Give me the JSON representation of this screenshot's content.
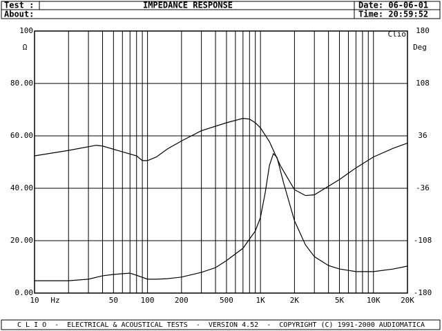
{
  "header": {
    "test_label": "Test :",
    "about_label": "About:",
    "title": "IMPEDANCE RESPONSE",
    "date": "Date: 06-06-01",
    "time": "Time: 20:59:52"
  },
  "footer": "C L I O  -  ELECTRICAL & ACOUSTICAL TESTS  -  VERSION 4.52  -  COPYRIGHT (C) 1991-2000 AUDIOMATICA",
  "chart_data": {
    "type": "line",
    "xlabel": "Hz",
    "ylabel": "Ω",
    "y2label": "Deg",
    "corner_label": "Clio",
    "xscale": "log",
    "grid": true,
    "xlim": [
      10,
      20000
    ],
    "xticks": [
      10,
      50,
      100,
      200,
      500,
      {
        "value": 1000,
        "label": "1K"
      },
      {
        "value": 2000,
        "label": "2K"
      },
      {
        "value": 5000,
        "label": "5K"
      },
      {
        "value": 10000,
        "label": "10K"
      },
      {
        "value": 20000,
        "label": "20K"
      }
    ],
    "xminor": [
      20,
      30,
      40,
      60,
      70,
      80,
      90,
      300,
      400,
      600,
      700,
      800,
      900,
      3000,
      4000,
      6000,
      7000,
      8000,
      9000
    ],
    "ylim": [
      0,
      100
    ],
    "yticks": [
      {
        "value": 0,
        "label": "0.00"
      },
      {
        "value": 20,
        "label": "20.00"
      },
      {
        "value": 40,
        "label": "40.00"
      },
      {
        "value": 60,
        "label": "60.00"
      },
      {
        "value": 80,
        "label": "80.00"
      },
      100
    ],
    "y2lim": [
      -180,
      180
    ],
    "y2ticks": [
      -180,
      -108,
      -36,
      36,
      108,
      180
    ],
    "series": [
      {
        "name": "Impedance",
        "color": "#000000",
        "x": [
          10,
          20,
          30,
          40,
          50,
          60,
          70,
          80,
          100,
          120,
          150,
          200,
          300,
          400,
          500,
          700,
          900,
          1000,
          1100,
          1200,
          1300,
          1400,
          1600,
          2000,
          2500,
          3000,
          4000,
          5000,
          7000,
          10000,
          15000,
          20000
        ],
        "values": [
          4.7,
          4.7,
          5.3,
          6.6,
          7.1,
          7.4,
          7.6,
          6.8,
          5.3,
          5.3,
          5.5,
          6.1,
          7.9,
          9.7,
          12.4,
          17.1,
          23.7,
          28.9,
          38.2,
          48.7,
          53.2,
          51.8,
          42.1,
          27.6,
          18.4,
          13.9,
          10.5,
          9.2,
          8.2,
          8.2,
          9.2,
          10.3
        ]
      },
      {
        "name": "Phase",
        "color": "#000000",
        "axis": "y2",
        "x": [
          10,
          20,
          35,
          40,
          60,
          80,
          90,
          100,
          120,
          150,
          200,
          300,
          500,
          700,
          800,
          900,
          1000,
          1200,
          1500,
          2000,
          2500,
          3000,
          5000,
          7000,
          10000,
          15000,
          20000
        ],
        "values": [
          8.5,
          16,
          23,
          22,
          14,
          8.5,
          2,
          2,
          7,
          18,
          29,
          43,
          54,
          60,
          59,
          54,
          47,
          28,
          -5,
          -38,
          -46,
          -45,
          -24,
          -8,
          7,
          19,
          26
        ]
      }
    ]
  }
}
